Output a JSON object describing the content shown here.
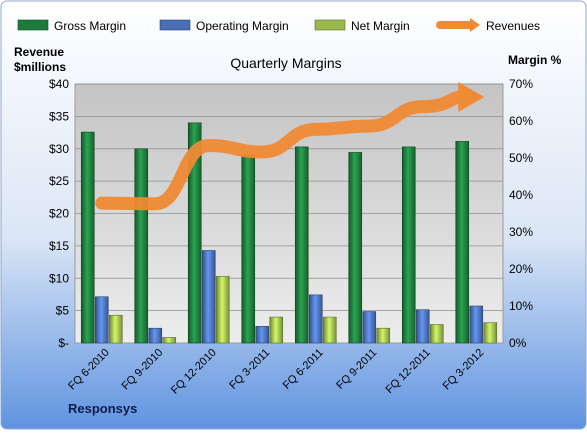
{
  "chart_data": {
    "type": "bar",
    "title": "Quarterly Margins",
    "company_label": "Responsys",
    "left_axis_label": [
      "Revenue",
      "$millions"
    ],
    "right_axis_label": "Margin %",
    "categories": [
      "FQ 6-2010",
      "FQ 9-2010",
      "FQ 12-2010",
      "FQ 3-2011",
      "FQ 6-2011",
      "FQ 9-2011",
      "FQ 12-2011",
      "FQ 3-2012"
    ],
    "series": [
      {
        "name": "Gross Margin",
        "axis": "right",
        "color": "#1e7a3c",
        "values": [
          57,
          52.5,
          59.5,
          51,
          53,
          51.5,
          53,
          54.5
        ]
      },
      {
        "name": "Operating Margin",
        "axis": "right",
        "color": "#4a6fb5",
        "values": [
          12.5,
          4,
          25,
          4.5,
          13,
          8.5,
          9,
          10
        ]
      },
      {
        "name": "Net Margin",
        "axis": "right",
        "color": "#9bb84c",
        "values": [
          7.5,
          1.5,
          18,
          7,
          7,
          4,
          5,
          5.5
        ]
      },
      {
        "name": "Revenues",
        "axis": "left",
        "type": "line-arrow",
        "color": "#ef8a35",
        "values": [
          21.6,
          21.5,
          30.5,
          29.5,
          33,
          33.5,
          36.5,
          38
        ]
      }
    ],
    "y_left": {
      "min": 0,
      "max": 40,
      "step": 5,
      "tick_labels": [
        "$-",
        "$5",
        "$10",
        "$15",
        "$20",
        "$25",
        "$30",
        "$35",
        "$40"
      ]
    },
    "y_right": {
      "min": 0,
      "max": 70,
      "step": 10,
      "tick_labels": [
        "0%",
        "10%",
        "20%",
        "30%",
        "40%",
        "50%",
        "60%",
        "70%"
      ]
    },
    "grid": true,
    "legend_position": "top"
  }
}
